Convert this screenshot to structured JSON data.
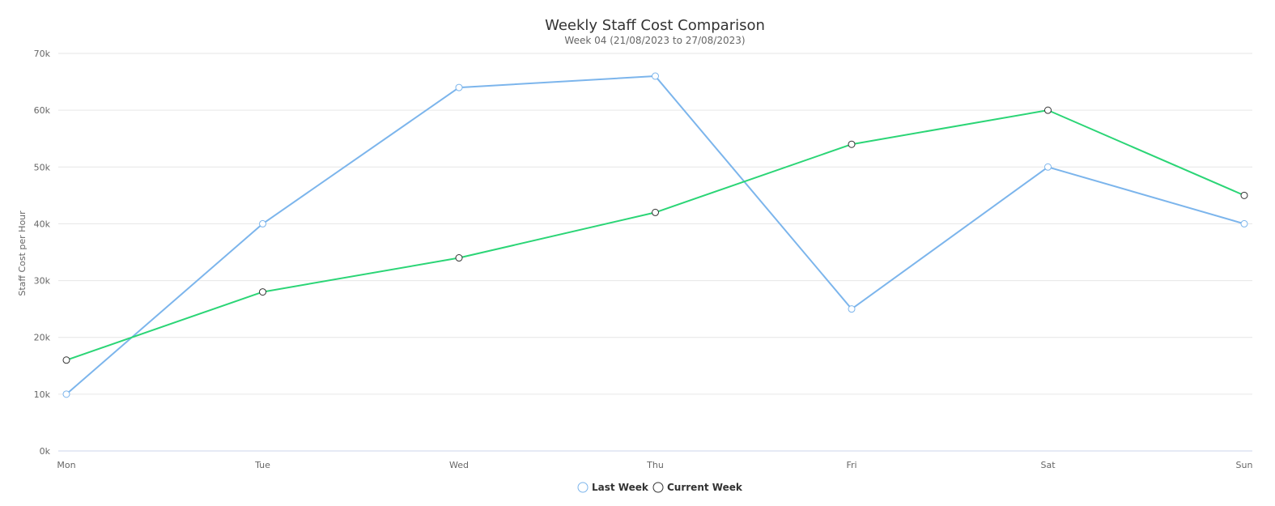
{
  "chart_data": {
    "type": "line",
    "title": "Weekly Staff Cost Comparison",
    "subtitle": "Week 04 (21/08/2023 to 27/08/2023)",
    "xlabel": "",
    "ylabel": "Staff Cost per Hour",
    "categories": [
      "Mon",
      "Tue",
      "Wed",
      "Thu",
      "Fri",
      "Sat",
      "Sun"
    ],
    "y_ticks": [
      0,
      10000,
      20000,
      30000,
      40000,
      50000,
      60000,
      70000
    ],
    "y_tick_labels": [
      "0k",
      "10k",
      "20k",
      "30k",
      "40k",
      "50k",
      "60k",
      "70k"
    ],
    "ylim": [
      0,
      70000
    ],
    "grid": true,
    "legend_position": "bottom-center",
    "series": [
      {
        "name": "Last Week",
        "values": [
          10000,
          40000,
          64000,
          66000,
          25000,
          50000,
          40000
        ],
        "line_color": "#7cb5ec",
        "marker_fill": "#ffffff",
        "marker_stroke": "#7cb5ec"
      },
      {
        "name": "Current Week",
        "values": [
          16000,
          28000,
          34000,
          42000,
          54000,
          60000,
          45000
        ],
        "line_color": "#2bd576",
        "marker_fill": "#ffffff",
        "marker_stroke": "#333333"
      }
    ]
  }
}
